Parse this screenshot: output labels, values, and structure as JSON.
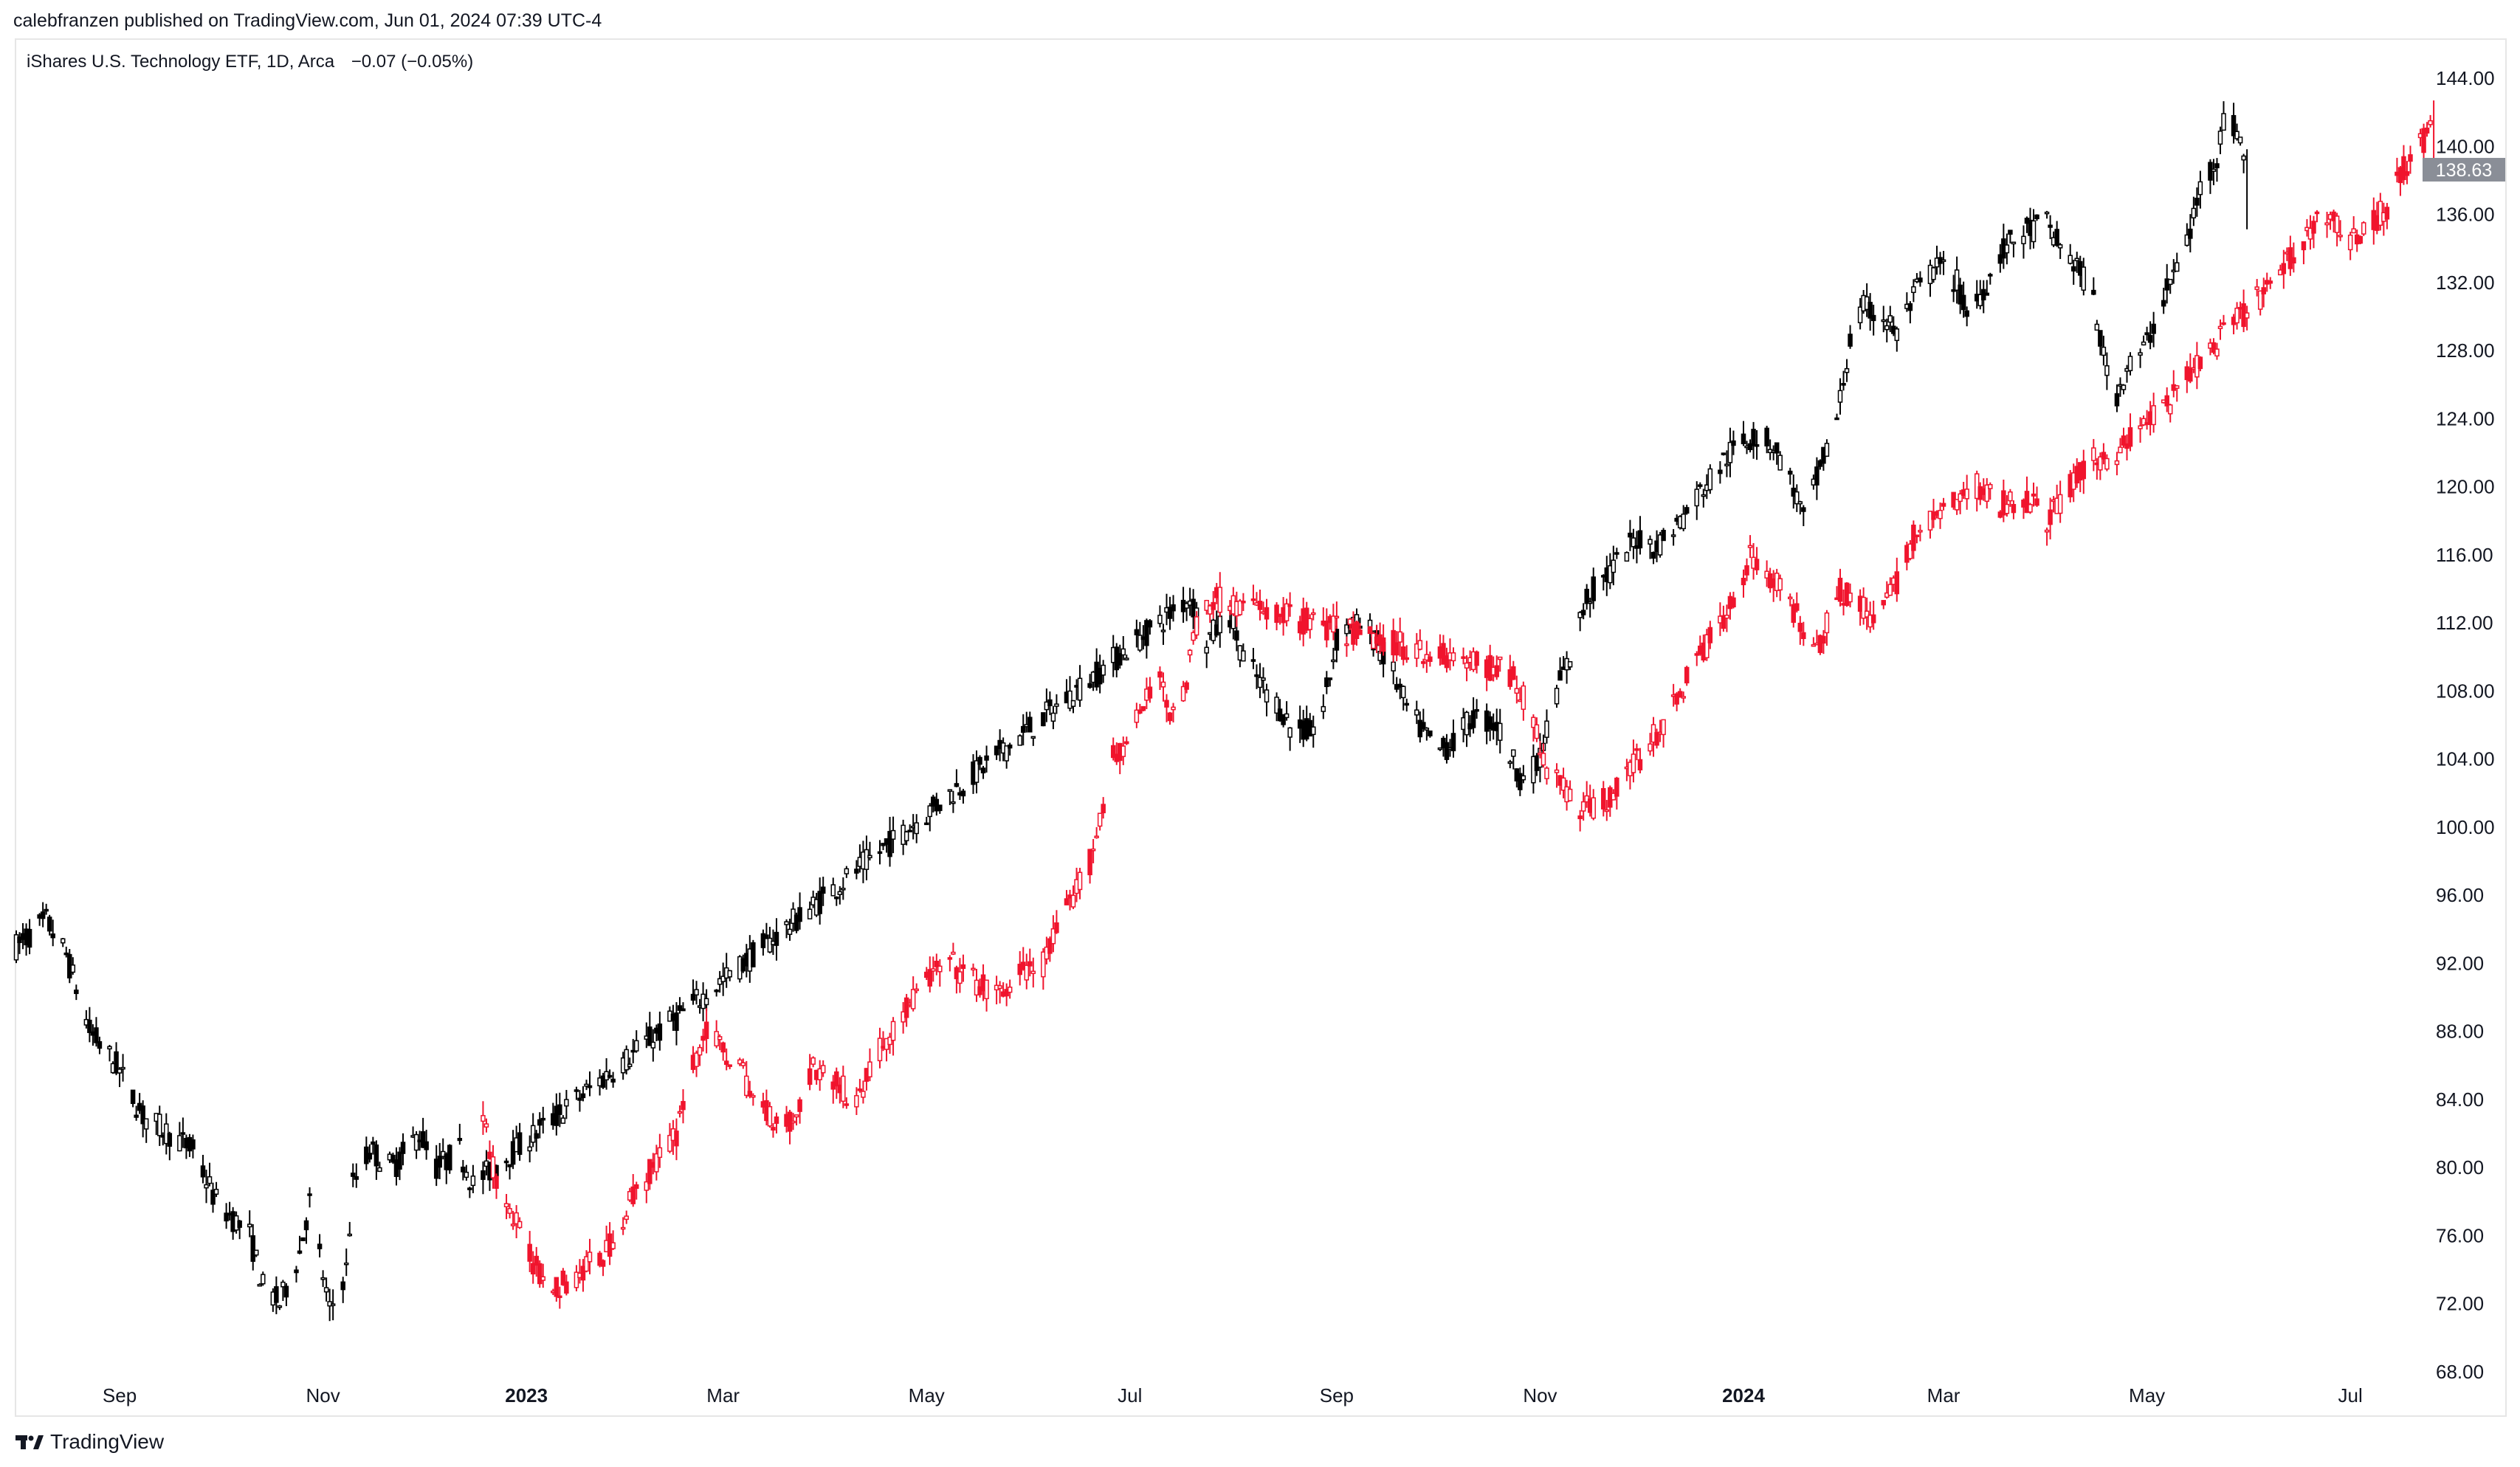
{
  "header": {
    "published_line": "calebfranzen published on TradingView.com, Jun 01, 2024 07:39 UTC-4"
  },
  "legend": {
    "symbol_line": "iShares U.S. Technology ETF, 1D, Arca",
    "change": "−0.07 (−0.05%)"
  },
  "price_label": {
    "value": "138.63",
    "color": "#8a8e97"
  },
  "footer": {
    "brand": "TradingView",
    "logo_icon": "tradingview-logo-icon"
  },
  "colors": {
    "candle_main": "#000000",
    "candle_overlay": "#f0142d",
    "axis_text": "#131722"
  },
  "chart_data": {
    "type": "candlestick",
    "title": "iShares U.S. Technology ETF, 1D, Arca",
    "ylim": [
      66,
      146
    ],
    "y_ticks": [
      "68.00",
      "72.00",
      "76.00",
      "80.00",
      "84.00",
      "88.00",
      "92.00",
      "96.00",
      "100.00",
      "104.00",
      "108.00",
      "112.00",
      "116.00",
      "120.00",
      "124.00",
      "128.00",
      "132.00",
      "136.00",
      "140.00",
      "144.00"
    ],
    "x_ticks": [
      {
        "label": "Sep",
        "date": "2022-09-01",
        "bold": false
      },
      {
        "label": "Nov",
        "date": "2022-11-01",
        "bold": false
      },
      {
        "label": "2023",
        "date": "2023-01-01",
        "bold": true
      },
      {
        "label": "Mar",
        "date": "2023-03-01",
        "bold": false
      },
      {
        "label": "May",
        "date": "2023-05-01",
        "bold": false
      },
      {
        "label": "Jul",
        "date": "2023-07-01",
        "bold": false
      },
      {
        "label": "Sep",
        "date": "2023-09-01",
        "bold": false
      },
      {
        "label": "Nov",
        "date": "2023-11-01",
        "bold": false
      },
      {
        "label": "2024",
        "date": "2024-01-01",
        "bold": true
      },
      {
        "label": "Mar",
        "date": "2024-03-01",
        "bold": false
      },
      {
        "label": "May",
        "date": "2024-05-01",
        "bold": false
      },
      {
        "label": "Jul",
        "date": "2024-07-01",
        "bold": false
      }
    ],
    "x_range": [
      "2022-08-01",
      "2024-07-20"
    ],
    "grid": false,
    "series": [
      {
        "name": "",
        "color": "#000000",
        "points": [
          [
            "2022-08-01",
            93.0
          ],
          [
            "2022-08-10",
            94.5
          ],
          [
            "2022-08-16",
            92.5
          ],
          [
            "2022-08-23",
            88.0
          ],
          [
            "2022-08-31",
            86.0
          ],
          [
            "2022-09-08",
            83.0
          ],
          [
            "2022-09-16",
            82.0
          ],
          [
            "2022-09-23",
            81.0
          ],
          [
            "2022-09-30",
            78.0
          ],
          [
            "2022-10-10",
            76.0
          ],
          [
            "2022-10-14",
            73.0
          ],
          [
            "2022-10-19",
            72.0
          ],
          [
            "2022-10-25",
            75.0
          ],
          [
            "2022-10-28",
            78.0
          ],
          [
            "2022-11-03",
            71.5
          ],
          [
            "2022-11-08",
            74.0
          ],
          [
            "2022-11-10",
            79.0
          ],
          [
            "2022-11-15",
            81.0
          ],
          [
            "2022-11-22",
            80.0
          ],
          [
            "2022-11-30",
            82.0
          ],
          [
            "2022-12-05",
            80.0
          ],
          [
            "2022-12-12",
            81.0
          ],
          [
            "2022-12-16",
            79.0
          ],
          [
            "2023-07-19",
            113.5
          ],
          [
            "2023-07-24",
            111.0
          ],
          [
            "2023-07-31",
            112.5
          ],
          [
            "2023-08-04",
            110.0
          ],
          [
            "2023-08-09",
            108.5
          ],
          [
            "2023-08-15",
            107.0
          ],
          [
            "2023-08-18",
            106.0
          ],
          [
            "2023-08-24",
            105.5
          ],
          [
            "2023-08-28",
            107.0
          ],
          [
            "2023-09-01",
            111.0
          ],
          [
            "2023-09-05",
            112.0
          ],
          [
            "2023-09-11",
            111.5
          ],
          [
            "2023-09-18",
            109.0
          ],
          [
            "2023-09-22",
            107.0
          ],
          [
            "2023-09-27",
            105.5
          ],
          [
            "2023-10-02",
            104.5
          ],
          [
            "2023-10-06",
            105.0
          ],
          [
            "2023-10-12",
            106.5
          ],
          [
            "2023-10-19",
            106.0
          ],
          [
            "2023-10-26",
            103.0
          ],
          [
            "2023-10-31",
            103.5
          ],
          [
            "2023-11-06",
            108.0
          ],
          [
            "2023-11-10",
            110.0
          ],
          [
            "2023-11-15",
            113.5
          ],
          [
            "2023-11-22",
            115.0
          ],
          [
            "2023-11-30",
            117.0
          ],
          [
            "2023-12-06",
            116.5
          ],
          [
            "2023-12-13",
            118.0
          ],
          [
            "2023-12-20",
            120.0
          ],
          [
            "2023-12-28",
            122.0
          ],
          [
            "2024-01-04",
            123.0
          ],
          [
            "2024-01-10",
            122.5
          ],
          [
            "2024-01-16",
            120.0
          ],
          [
            "2024-01-19",
            118.0
          ],
          [
            "2024-01-24",
            121.0
          ],
          [
            "2024-01-29",
            124.0
          ],
          [
            "2024-02-02",
            128.5
          ],
          [
            "2024-02-06",
            130.5
          ],
          [
            "2024-02-12",
            130.0
          ],
          [
            "2024-02-16",
            129.0
          ],
          [
            "2024-02-22",
            131.5
          ],
          [
            "2024-02-28",
            133.0
          ],
          [
            "2024-03-05",
            132.0
          ],
          [
            "2024-03-08",
            130.0
          ],
          [
            "2024-03-14",
            132.0
          ],
          [
            "2024-03-19",
            134.0
          ],
          [
            "2024-03-26",
            135.0
          ],
          [
            "2024-04-01",
            135.5
          ],
          [
            "2024-04-05",
            134.0
          ],
          [
            "2024-04-10",
            133.0
          ],
          [
            "2024-04-15",
            131.0
          ],
          [
            "2024-04-18",
            127.5
          ],
          [
            "2024-04-22",
            125.5
          ],
          [
            "2024-04-25",
            127.0
          ],
          [
            "2024-04-30",
            128.0
          ],
          [
            "2024-05-06",
            131.0
          ],
          [
            "2024-05-10",
            133.0
          ],
          [
            "2024-05-14",
            135.0
          ],
          [
            "2024-05-17",
            137.5
          ],
          [
            "2024-05-22",
            139.5
          ],
          [
            "2024-05-24",
            141.5
          ],
          [
            "2024-05-28",
            141.0
          ],
          [
            "2024-05-31",
            138.63
          ]
        ]
      },
      {
        "name": "",
        "color": "#f0142d",
        "points": [
          [
            "2022-12-19",
            83.0
          ],
          [
            "2022-12-22",
            80.0
          ],
          [
            "2022-12-28",
            77.0
          ],
          [
            "2023-01-04",
            74.0
          ],
          [
            "2023-01-11",
            73.0
          ],
          [
            "2023-01-18",
            74.0
          ],
          [
            "2023-01-25",
            75.0
          ],
          [
            "2023-02-01",
            78.0
          ],
          [
            "2023-02-08",
            80.0
          ],
          [
            "2023-02-15",
            82.0
          ],
          [
            "2023-02-17",
            84.0
          ],
          [
            "2023-02-21",
            86.5
          ],
          [
            "2023-02-23",
            88.0
          ],
          [
            "2023-02-28",
            87.0
          ],
          [
            "2023-03-06",
            86.0
          ],
          [
            "2023-03-10",
            84.0
          ],
          [
            "2023-03-16",
            83.0
          ],
          [
            "2023-03-22",
            82.5
          ],
          [
            "2023-03-28",
            86.0
          ],
          [
            "2023-04-03",
            85.0
          ],
          [
            "2023-04-10",
            84.0
          ],
          [
            "2023-04-17",
            87.0
          ],
          [
            "2023-04-24",
            89.0
          ],
          [
            "2023-05-01",
            91.0
          ],
          [
            "2023-05-08",
            92.0
          ],
          [
            "2023-05-15",
            91.0
          ],
          [
            "2023-05-22",
            90.0
          ],
          [
            "2023-05-30",
            91.5
          ],
          [
            "2023-06-05",
            92.0
          ],
          [
            "2023-06-12",
            95.0
          ],
          [
            "2023-06-19",
            98.0
          ],
          [
            "2023-06-26",
            104.0
          ],
          [
            "2023-06-30",
            105.0
          ],
          [
            "2023-07-05",
            107.0
          ],
          [
            "2023-07-10",
            109.0
          ],
          [
            "2023-07-13",
            107.0
          ],
          [
            "2023-07-17",
            107.5
          ],
          [
            "2023-07-21",
            112.0
          ],
          [
            "2023-07-26",
            113.5
          ],
          [
            "2023-10-24",
            109.0
          ],
          [
            "2023-10-30",
            106.0
          ],
          [
            "2023-11-03",
            103.5
          ],
          [
            "2023-11-08",
            102.5
          ],
          [
            "2023-11-14",
            101.0
          ],
          [
            "2023-11-20",
            101.5
          ],
          [
            "2023-11-27",
            103.0
          ],
          [
            "2023-12-04",
            105.0
          ],
          [
            "2023-12-11",
            107.0
          ],
          [
            "2023-12-18",
            110.0
          ],
          [
            "2023-12-26",
            112.0
          ],
          [
            "2024-01-03",
            116.0
          ],
          [
            "2024-01-08",
            115.0
          ],
          [
            "2024-01-12",
            114.0
          ],
          [
            "2024-01-18",
            112.0
          ],
          [
            "2024-01-24",
            111.0
          ],
          [
            "2024-01-30",
            114.0
          ],
          [
            "2024-02-05",
            113.0
          ],
          [
            "2024-02-09",
            112.0
          ],
          [
            "2024-02-15",
            114.0
          ],
          [
            "2024-02-21",
            117.0
          ],
          [
            "2024-02-27",
            118.0
          ],
          [
            "2024-03-04",
            119.0
          ],
          [
            "2024-03-11",
            120.0
          ],
          [
            "2024-03-18",
            119.0
          ],
          [
            "2024-03-25",
            119.5
          ],
          [
            "2024-04-01",
            118.0
          ],
          [
            "2024-04-08",
            120.0
          ],
          [
            "2024-04-15",
            121.5
          ],
          [
            "2024-04-22",
            122.0
          ],
          [
            "2024-04-29",
            123.5
          ],
          [
            "2024-05-06",
            124.5
          ],
          [
            "2024-05-13",
            126.5
          ],
          [
            "2024-05-20",
            128.0
          ],
          [
            "2024-05-27",
            129.5
          ],
          [
            "2024-06-03",
            131.0
          ],
          [
            "2024-06-10",
            132.5
          ],
          [
            "2024-06-17",
            134.5
          ],
          [
            "2024-06-21",
            136.0
          ],
          [
            "2024-06-26",
            135.5
          ],
          [
            "2024-07-01",
            134.5
          ],
          [
            "2024-07-08",
            135.5
          ],
          [
            "2024-07-12",
            136.5
          ],
          [
            "2024-07-16",
            138.5
          ],
          [
            "2024-07-22",
            140.0
          ],
          [
            "2024-07-26",
            141.5
          ]
        ]
      }
    ]
  }
}
